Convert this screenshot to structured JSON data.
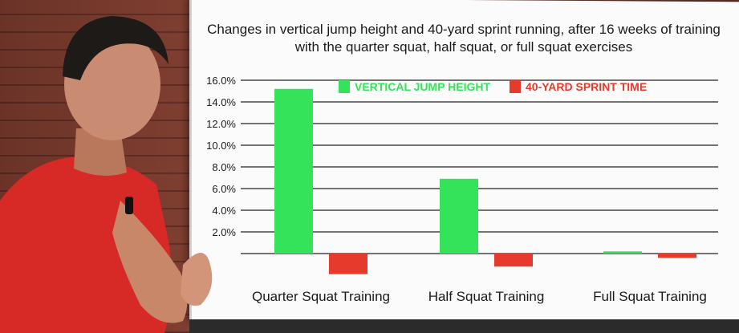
{
  "chart_data": {
    "type": "bar",
    "title": "Changes in vertical jump height and 40-yard sprint running, after 16 weeks of training with the quarter squat, half squat, or full squat exercises",
    "xlabel": "",
    "ylabel": "",
    "categories": [
      "Quarter Squat Training",
      "Half Squat Training",
      "Full Squat Training"
    ],
    "series": [
      {
        "name": "VERTICAL JUMP HEIGHT",
        "color": "#35e35a",
        "values": [
          15.2,
          6.9,
          0.2
        ]
      },
      {
        "name": "40-YARD SPRINT TIME",
        "color": "#e53a2c",
        "values": [
          -1.9,
          -1.2,
          -0.4
        ]
      }
    ],
    "yticks": [
      "16.0%",
      "14.0%",
      "12.0%",
      "10.0%",
      "8.0%",
      "6.0%",
      "4.0%",
      "2.0%"
    ],
    "ylim": [
      -2,
      16
    ],
    "grid": true,
    "legend": "top"
  }
}
